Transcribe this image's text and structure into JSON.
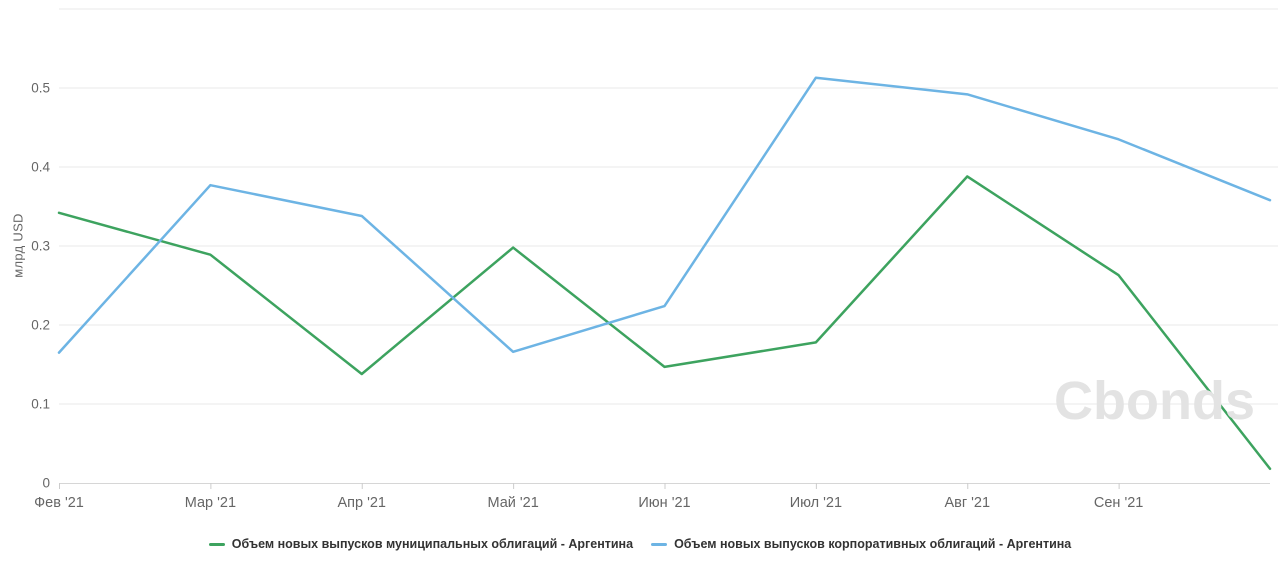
{
  "chart_data": {
    "type": "line",
    "title": "",
    "xlabel": "",
    "ylabel": "млрд USD",
    "categories": [
      "Фев '21",
      "Мар '21",
      "Апр '21",
      "Май '21",
      "Июн '21",
      "Июл '21",
      "Авг '21",
      "Сен '21",
      ""
    ],
    "series": [
      {
        "name": "Объем новых выпусков муниципальных облигаций - Аргентина",
        "color": "#3da35f",
        "values": [
          0.342,
          0.289,
          0.138,
          0.298,
          0.147,
          0.178,
          0.388,
          0.263,
          0.018
        ]
      },
      {
        "name": "Объем новых выпусков корпоративных облигаций - Аргентина",
        "color": "#6db4e4",
        "values": [
          0.165,
          0.377,
          0.338,
          0.166,
          0.224,
          0.513,
          0.492,
          0.435,
          0.358
        ]
      }
    ],
    "ylim": [
      0,
      0.6
    ],
    "yticks": [
      0,
      0.1,
      0.2,
      0.3,
      0.4,
      0.5
    ],
    "ytick_labels": [
      "0",
      "0.1",
      "0.2",
      "0.3",
      "0.4",
      "0.5"
    ],
    "grid": "horizontal",
    "grid_color": "#e9e9e9",
    "axis_line_color": "#d6d6d6",
    "tick_color": "#cccccc",
    "legend_position": "bottom"
  },
  "watermark": "Cbonds"
}
